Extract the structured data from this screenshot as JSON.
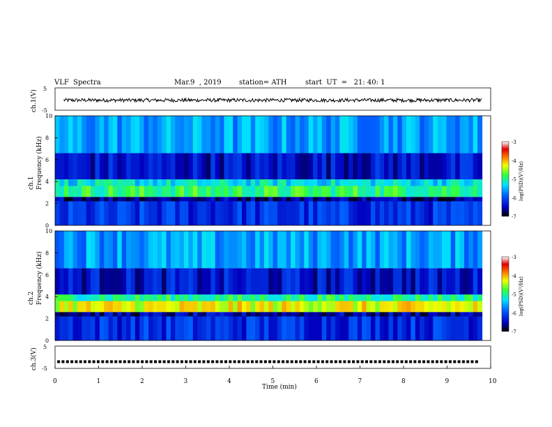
{
  "header": {
    "title": "VLF  Spectra",
    "date": "Mar.9  , 2019",
    "station": "station= ATH",
    "start": "start  UT  =   21: 40: 1"
  },
  "chart_data": [
    {
      "type": "line",
      "title": "",
      "ylabel": "ch.1(V)",
      "xlim": [
        0,
        10
      ],
      "ylim": [
        -5,
        5
      ],
      "yticks": [
        "5",
        "-5"
      ],
      "series": [
        {
          "values_note": "noisy waveform around -0.5 V",
          "mean": -0.5,
          "amplitude": 0.8
        }
      ]
    },
    {
      "type": "heatmap",
      "ylabel": "Frequency  (kHz)",
      "channel_label": "ch.1",
      "xlim": [
        0,
        10
      ],
      "ylim": [
        0,
        10
      ],
      "yticks": [
        "0",
        "2",
        "4",
        "6",
        "8",
        "10"
      ],
      "colorbar": {
        "label": "log(PSD)(V²/Hz)",
        "ticks": [
          "-3",
          "-4",
          "-5",
          "-6",
          "-7"
        ],
        "range": [
          -7,
          -3
        ]
      },
      "bands_khz": [
        {
          "from": 0,
          "to": 2.2,
          "level": -6.2
        },
        {
          "from": 2.2,
          "to": 2.6,
          "level": -6.6
        },
        {
          "from": 2.6,
          "to": 3.6,
          "level": -4.9
        },
        {
          "from": 3.6,
          "to": 4.2,
          "level": -5.3
        },
        {
          "from": 4.2,
          "to": 6.6,
          "level": -6.4
        },
        {
          "from": 6.6,
          "to": 10,
          "level": -5.6
        }
      ]
    },
    {
      "type": "heatmap",
      "ylabel": "Frequency  (kHz)",
      "channel_label": "ch.2",
      "xlim": [
        0,
        10
      ],
      "ylim": [
        0,
        10
      ],
      "yticks": [
        "0",
        "2",
        "4",
        "6",
        "8",
        "10"
      ],
      "colorbar": {
        "label": "log(PSD)(V²/Hz)",
        "ticks": [
          "-3",
          "-4",
          "-5",
          "-6",
          "-7"
        ],
        "range": [
          -7,
          -3
        ]
      },
      "bands_khz": [
        {
          "from": 0,
          "to": 2.2,
          "level": -6.2
        },
        {
          "from": 2.2,
          "to": 2.6,
          "level": -6.6
        },
        {
          "from": 2.6,
          "to": 3.6,
          "level": -4.3
        },
        {
          "from": 3.6,
          "to": 4.2,
          "level": -5.0
        },
        {
          "from": 4.2,
          "to": 6.6,
          "level": -6.4
        },
        {
          "from": 6.6,
          "to": 10,
          "level": -5.6
        }
      ]
    },
    {
      "type": "line",
      "ylabel": "ch.3(V)",
      "xlim": [
        0,
        10
      ],
      "ylim": [
        -5,
        5
      ],
      "yticks": [
        "5",
        "-5"
      ],
      "series": [
        {
          "values_note": "pulse train near -2 V",
          "mean": -2
        }
      ]
    }
  ],
  "xaxis": {
    "label": "Time  (min)",
    "ticks": [
      "0",
      "1",
      "2",
      "3",
      "4",
      "5",
      "6",
      "7",
      "8",
      "9",
      "10"
    ]
  }
}
